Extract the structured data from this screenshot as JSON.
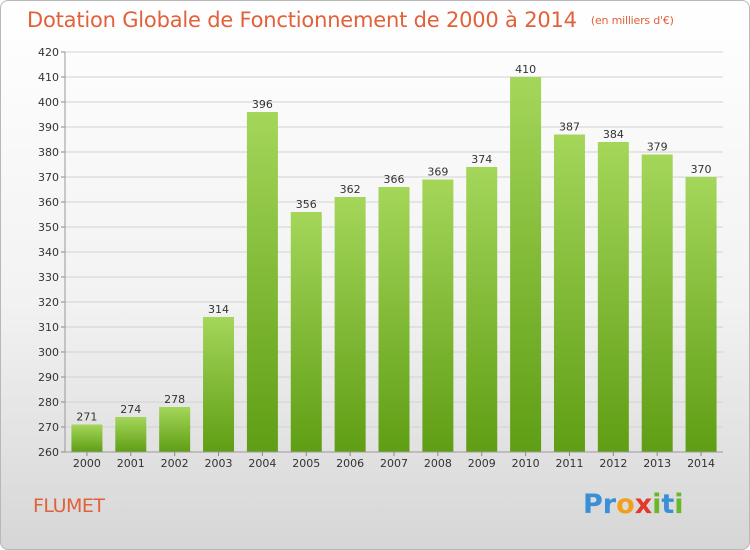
{
  "chart_data": {
    "type": "bar",
    "title": "Dotation Globale de Fonctionnement de 2000 à 2014",
    "unit_note": "(en milliers d'€)",
    "categories": [
      "2000",
      "2001",
      "2002",
      "2003",
      "2004",
      "2005",
      "2006",
      "2007",
      "2008",
      "2009",
      "2010",
      "2011",
      "2012",
      "2013",
      "2014"
    ],
    "values": [
      271,
      274,
      278,
      314,
      396,
      356,
      362,
      366,
      369,
      374,
      410,
      387,
      384,
      379,
      370
    ],
    "ylim": [
      260,
      420
    ],
    "ytick_step": 10,
    "xlabel": "",
    "ylabel": "",
    "grid": true,
    "bar_color_top": "#a4d65a",
    "bar_color_bottom": "#5f9e14"
  },
  "commune": "FLUMET",
  "brand": {
    "letters": [
      {
        "ch": "P",
        "color": "#3a8fd6"
      },
      {
        "ch": "r",
        "color": "#3a8fd6"
      },
      {
        "ch": "o",
        "color": "#f0a020"
      },
      {
        "ch": "x",
        "color": "#e23a2a"
      },
      {
        "ch": "i",
        "color": "#6ab82a"
      },
      {
        "ch": "t",
        "color": "#3a8fd6"
      },
      {
        "ch": "i",
        "color": "#6ab82a"
      }
    ]
  }
}
